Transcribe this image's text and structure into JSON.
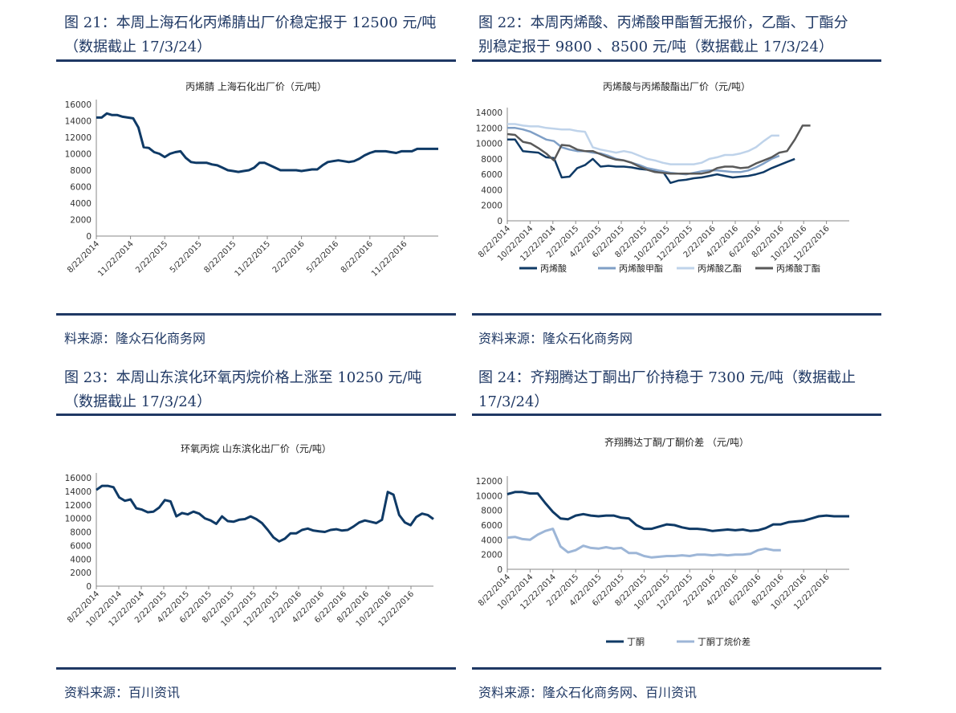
{
  "colors": {
    "navy": "#0f3a66",
    "mid": "#7f9fc6",
    "light": "#bfd3ea",
    "dark": "#595959",
    "rule": "#1f3864"
  },
  "fig21": {
    "title": "图 21：本周上海石化丙烯腈出厂价稳定报于 12500 元/吨（数据截止 17/3/24）",
    "source": "料来源：隆众石化商务网"
  },
  "fig22": {
    "title": "图 22：本周丙烯酸、丙烯酸甲酯暂无报价，乙酯、丁酯分别稳定报于 9800 、8500 元/吨（数据截止 17/3/24）",
    "source": "资料来源：隆众石化商务网"
  },
  "fig23": {
    "title": "图 23：本周山东滨化环氧丙烷价格上涨至 10250 元/吨（数据截止 17/3/24）",
    "source": "资料来源：百川资讯"
  },
  "fig24": {
    "title": "图 24：齐翔腾达丁酮出厂价持稳于 7300 元/吨（数据截止 17/3/24）",
    "source": "资料来源：隆众石化商务网、百川资讯"
  },
  "chart_data": [
    {
      "type": "line",
      "title": "丙烯腈 上海石化出厂价（元/吨）",
      "ylim": [
        0,
        16000
      ],
      "yticks": [
        0,
        2000,
        4000,
        6000,
        8000,
        10000,
        12000,
        14000,
        16000
      ],
      "xticks": [
        "8/22/2014",
        "11/22/2014",
        "2/22/2015",
        "5/22/2015",
        "8/22/2015",
        "11/22/2015",
        "2/22/2016",
        "5/22/2016",
        "8/22/2016",
        "11/22/2016"
      ],
      "x": [
        "2014-08-22",
        "2014-09-05",
        "2014-09-19",
        "2014-10-03",
        "2014-10-17",
        "2014-10-31",
        "2014-11-14",
        "2014-11-28",
        "2014-12-12",
        "2014-12-26",
        "2015-01-09",
        "2015-01-23",
        "2015-02-06",
        "2015-02-20",
        "2015-03-06",
        "2015-03-20",
        "2015-04-03",
        "2015-04-17",
        "2015-05-01",
        "2015-05-15",
        "2015-05-29",
        "2015-06-12",
        "2015-06-26",
        "2015-07-10",
        "2015-07-24",
        "2015-08-07",
        "2015-08-21",
        "2015-09-04",
        "2015-09-18",
        "2015-10-02",
        "2015-10-16",
        "2015-10-30",
        "2015-11-13",
        "2015-11-27",
        "2015-12-11",
        "2015-12-25",
        "2016-01-08",
        "2016-01-22",
        "2016-02-05",
        "2016-02-19",
        "2016-03-04",
        "2016-03-18",
        "2016-04-01",
        "2016-04-15",
        "2016-04-29",
        "2016-05-13",
        "2016-05-27",
        "2016-06-10",
        "2016-06-24",
        "2016-07-08",
        "2016-07-22",
        "2016-08-05",
        "2016-08-19",
        "2016-09-02",
        "2016-09-16",
        "2016-09-30",
        "2016-10-14",
        "2016-10-28",
        "2016-11-11",
        "2016-11-25",
        "2016-12-09",
        "2016-12-23",
        "2017-01-06",
        "2017-01-20",
        "2017-02-03",
        "2017-02-17"
      ],
      "series": [
        {
          "name": "",
          "color": "#0f3a66",
          "values": [
            14400,
            14400,
            14900,
            14700,
            14700,
            14500,
            14400,
            14300,
            13200,
            10800,
            10700,
            10200,
            10000,
            9600,
            10000,
            10200,
            10300,
            9500,
            9000,
            8900,
            8900,
            8900,
            8700,
            8600,
            8300,
            8000,
            7900,
            7800,
            7900,
            8000,
            8300,
            8900,
            8900,
            8600,
            8300,
            8000,
            8000,
            8000,
            8000,
            7900,
            8000,
            8100,
            8100,
            8600,
            9000,
            9100,
            9200,
            9100,
            9000,
            9100,
            9400,
            9800,
            10100,
            10300,
            10300,
            10300,
            10200,
            10100,
            10300,
            10300,
            10300,
            10600,
            10600,
            10600,
            10600,
            10600
          ]
        }
      ]
    },
    {
      "type": "line",
      "title": "丙烯酸与丙烯酸酯出厂价（元/吨）",
      "ylim": [
        0,
        14000
      ],
      "yticks": [
        0,
        2000,
        4000,
        6000,
        8000,
        10000,
        12000,
        14000
      ],
      "xticks": [
        "8/22/2014",
        "10/22/2014",
        "12/22/2014",
        "2/22/2015",
        "4/22/2015",
        "6/22/2015",
        "8/22/2015",
        "10/22/2015",
        "12/22/2015",
        "2/22/2016",
        "4/22/2016",
        "6/22/2016",
        "8/22/2016",
        "10/22/2016",
        "12/22/2016"
      ],
      "legend": "bottom",
      "series": [
        {
          "name": "丙烯酸",
          "color": "#0f3a66",
          "values": [
            10500,
            10500,
            9000,
            8900,
            8800,
            8200,
            8100,
            5600,
            5700,
            6800,
            7200,
            8000,
            7000,
            7100,
            7000,
            7000,
            6900,
            6700,
            6600,
            6500,
            6400,
            4900,
            5200,
            5300,
            5500,
            5600,
            5800,
            6000,
            5800,
            5600,
            5700,
            5800,
            6000,
            6300,
            6800,
            7200,
            7600,
            8000,
            null,
            null,
            null,
            null,
            null,
            null,
            null
          ]
        },
        {
          "name": "丙烯酸甲酯",
          "color": "#7f9fc6",
          "values": [
            12000,
            12000,
            11800,
            11500,
            11000,
            10500,
            10300,
            9500,
            9200,
            9000,
            9000,
            8800,
            8700,
            8400,
            8000,
            7800,
            7500,
            7200,
            6800,
            6600,
            6400,
            6200,
            6100,
            6000,
            6200,
            6400,
            6500,
            6500,
            6400,
            6300,
            6300,
            6500,
            6900,
            7400,
            8000,
            8400,
            null,
            null,
            null,
            null,
            null,
            null,
            null,
            null,
            null
          ]
        },
        {
          "name": "丙烯酸乙酯",
          "color": "#bfd3ea",
          "values": [
            12500,
            12500,
            12300,
            12200,
            12200,
            12000,
            11900,
            11800,
            11800,
            11600,
            11500,
            9500,
            9200,
            9000,
            8800,
            9000,
            8800,
            8400,
            8000,
            7800,
            7500,
            7300,
            7300,
            7300,
            7300,
            7500,
            8000,
            8200,
            8500,
            8500,
            8700,
            9000,
            9500,
            10300,
            11000,
            11000,
            null,
            null,
            null,
            null,
            null,
            null,
            null,
            null,
            null
          ]
        },
        {
          "name": "丙烯酸丁酯",
          "color": "#595959",
          "values": [
            11200,
            11100,
            10200,
            10000,
            9400,
            8700,
            7800,
            9800,
            9700,
            9200,
            9000,
            9000,
            8600,
            8200,
            7900,
            7800,
            7500,
            7000,
            6600,
            6300,
            6200,
            6100,
            6100,
            6100,
            6100,
            6100,
            6300,
            6800,
            7000,
            7000,
            6800,
            6900,
            7400,
            7800,
            8200,
            8800,
            9000,
            10500,
            12300,
            12300,
            null,
            null,
            null,
            null,
            null
          ]
        }
      ]
    },
    {
      "type": "line",
      "title": "环氧丙烷 山东滨化出厂价（元/吨）",
      "ylim": [
        0,
        16000
      ],
      "yticks": [
        0,
        2000,
        4000,
        6000,
        8000,
        10000,
        12000,
        14000,
        16000
      ],
      "xticks": [
        "8/22/2014",
        "10/22/2014",
        "12/22/2014",
        "2/22/2015",
        "4/22/2015",
        "6/22/2015",
        "8/22/2015",
        "10/22/2015",
        "12/22/2015",
        "2/22/2016",
        "4/22/2016",
        "6/22/2016",
        "8/22/2016",
        "10/22/2016",
        "12/22/2016"
      ],
      "series": [
        {
          "name": "",
          "color": "#0f3a66",
          "values": [
            14200,
            14800,
            14800,
            14600,
            13100,
            12600,
            12800,
            11500,
            11300,
            10900,
            11000,
            11600,
            12700,
            12500,
            10300,
            10800,
            10600,
            11000,
            10700,
            10000,
            9700,
            9200,
            10300,
            9600,
            9500,
            9800,
            9900,
            10300,
            9900,
            9300,
            8300,
            7200,
            6600,
            7000,
            7800,
            7800,
            8300,
            8500,
            8200,
            8100,
            8000,
            8300,
            8400,
            8200,
            8300,
            8800,
            9400,
            9700,
            9500,
            9300,
            9800,
            13900,
            13500,
            10500,
            9400,
            9000,
            10200,
            10700,
            10500,
            9900
          ]
        }
      ]
    },
    {
      "type": "line",
      "title": "齐翔腾达丁酮/丁酮价差 （元/吨）",
      "ylim": [
        0,
        12000
      ],
      "yticks": [
        0,
        2000,
        4000,
        6000,
        8000,
        10000,
        12000
      ],
      "xticks": [
        "8/22/2014",
        "10/22/2014",
        "12/22/2014",
        "2/22/2015",
        "4/22/2015",
        "6/22/2015",
        "8/22/2015",
        "10/22/2015",
        "12/22/2015",
        "2/22/2016",
        "4/22/2016",
        "6/22/2016",
        "8/22/2016",
        "10/22/2016",
        "12/22/2016"
      ],
      "legend": "bottom",
      "series": [
        {
          "name": "丁酮",
          "color": "#0f3a66",
          "values": [
            10200,
            10500,
            10500,
            10300,
            10300,
            9000,
            7800,
            6900,
            6800,
            7300,
            7500,
            7300,
            7200,
            7300,
            7300,
            7000,
            6900,
            6000,
            5500,
            5500,
            5800,
            6100,
            6000,
            5700,
            5500,
            5500,
            5400,
            5200,
            5300,
            5400,
            5300,
            5400,
            5200,
            5300,
            5600,
            6100,
            6100,
            6400,
            6500,
            6600,
            6900,
            7200,
            7300,
            7200,
            7200,
            7200
          ]
        },
        {
          "name": "丁酮丁烷价差",
          "color": "#9db6d7",
          "values": [
            4300,
            4400,
            4100,
            4000,
            4700,
            5200,
            5500,
            3100,
            2300,
            2600,
            3200,
            2900,
            2800,
            3000,
            2800,
            2900,
            2200,
            2200,
            1800,
            1600,
            1700,
            1800,
            1800,
            1900,
            1800,
            2000,
            2000,
            1900,
            2000,
            1900,
            2000,
            2000,
            2100,
            2600,
            2800,
            2600,
            2600,
            null,
            null,
            null,
            null,
            null,
            null,
            null,
            null,
            null
          ]
        }
      ]
    }
  ]
}
